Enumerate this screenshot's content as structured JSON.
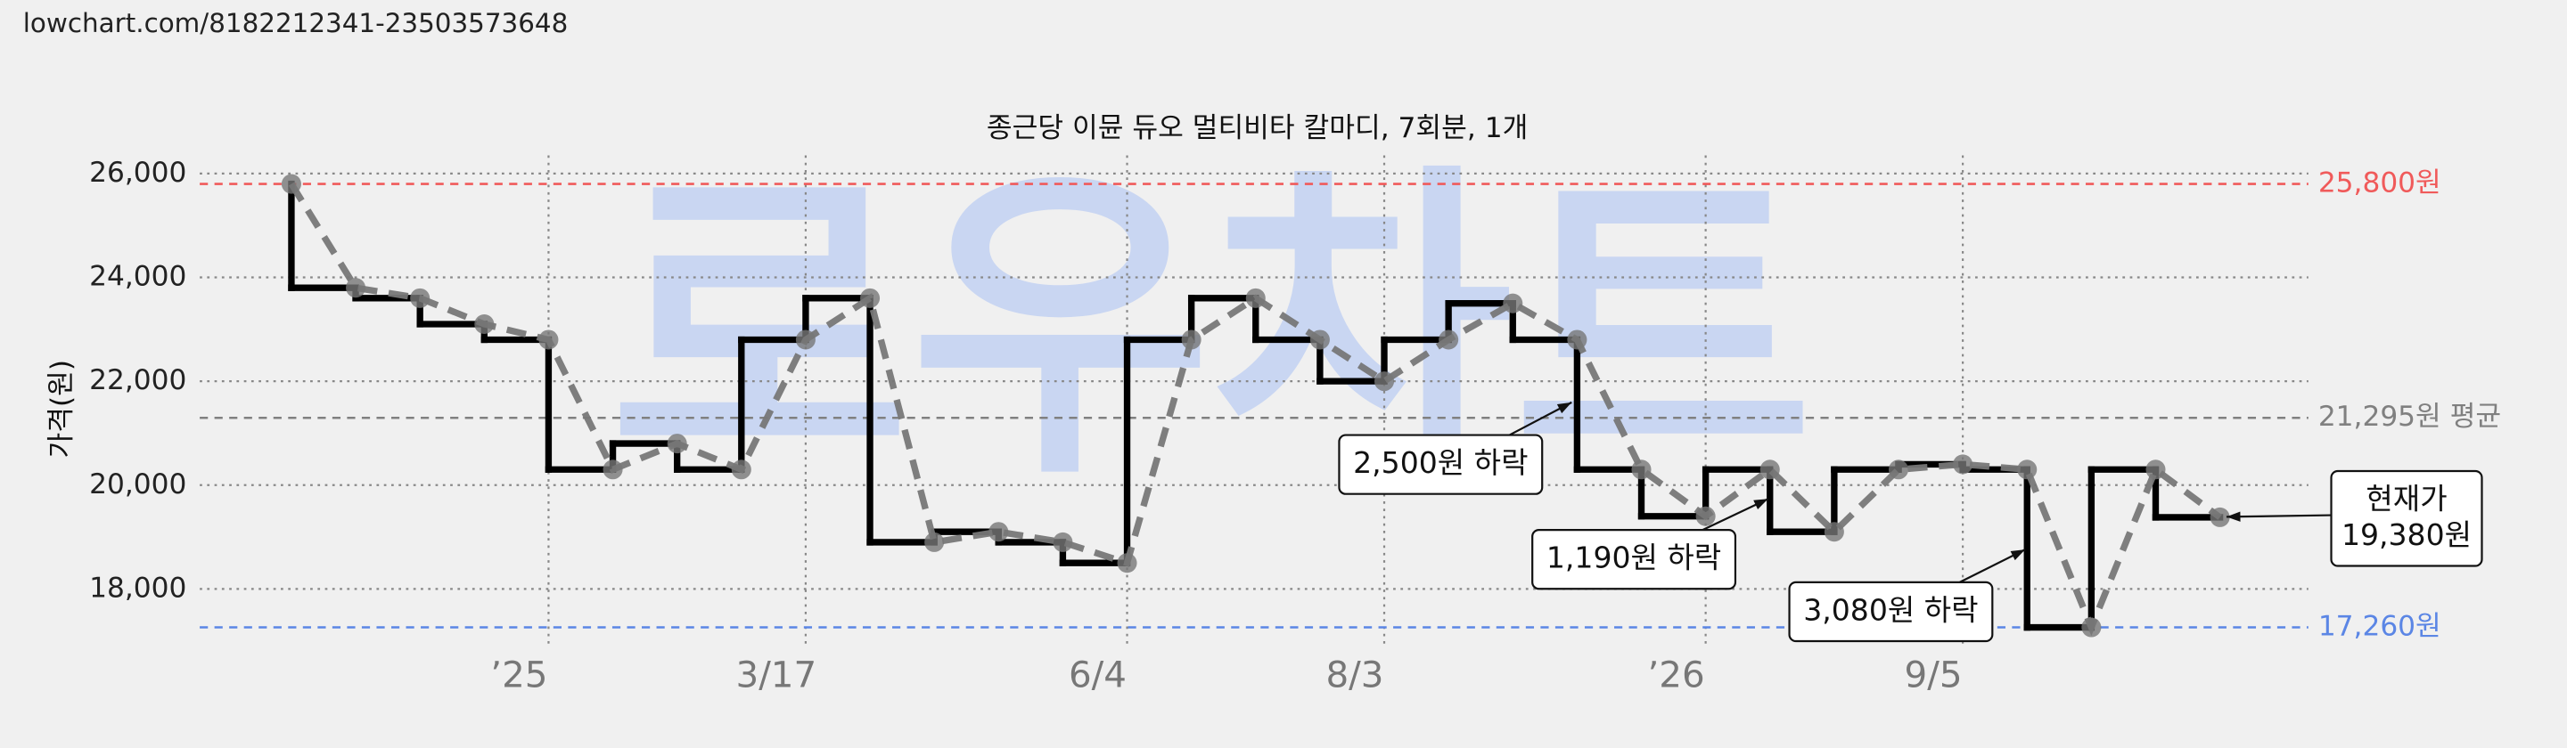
{
  "url": "lowchart.com/8182212341-23503573648",
  "chart_data": {
    "type": "line",
    "title": "종근당 이뮨 듀오 멀티비타 칼마디, 7회분, 1개",
    "watermark": "로우차트",
    "y_label": "가격(원)",
    "categories": [
      null,
      null,
      null,
      null,
      "’25",
      null,
      null,
      null,
      "3/17",
      null,
      null,
      null,
      null,
      "6/4",
      null,
      null,
      null,
      "8/3",
      null,
      null,
      null,
      null,
      "’26",
      null,
      null,
      null,
      "9/5",
      null,
      null,
      null,
      null
    ],
    "series": [
      {
        "color": "#777777",
        "step_color": "#000000",
        "values": [
          25800,
          23800,
          23600,
          23100,
          22800,
          20300,
          20800,
          20300,
          22800,
          23600,
          18900,
          19100,
          18900,
          18500,
          22800,
          23600,
          22800,
          22000,
          22800,
          23500,
          22800,
          20300,
          19400,
          20300,
          19100,
          20300,
          20400,
          20300,
          17260,
          20300,
          19380
        ]
      }
    ],
    "ylim": [
      16900,
      26350
    ],
    "yticks": [
      {
        "value": 18000,
        "label": "18,000"
      },
      {
        "value": 20000,
        "label": "20,000"
      },
      {
        "value": 22000,
        "label": "22,000"
      },
      {
        "value": 24000,
        "label": "24,000"
      },
      {
        "value": 26000,
        "label": "26,000"
      }
    ],
    "grid": true,
    "reference_lines": [
      {
        "value": 25800,
        "label": "25,800원",
        "color": "#f05a5a"
      },
      {
        "value": 21295,
        "label": "21,295원 평균",
        "color": "#808080"
      },
      {
        "value": 17260,
        "label": "17,260원",
        "color": "#5b86e5"
      }
    ],
    "annotations": [
      {
        "lines": [
          "2,500원 하락"
        ]
      },
      {
        "lines": [
          "1,190원 하락"
        ]
      },
      {
        "lines": [
          "3,080원 하락"
        ]
      },
      {
        "lines": [
          "현재가",
          "19,380원"
        ]
      }
    ]
  }
}
